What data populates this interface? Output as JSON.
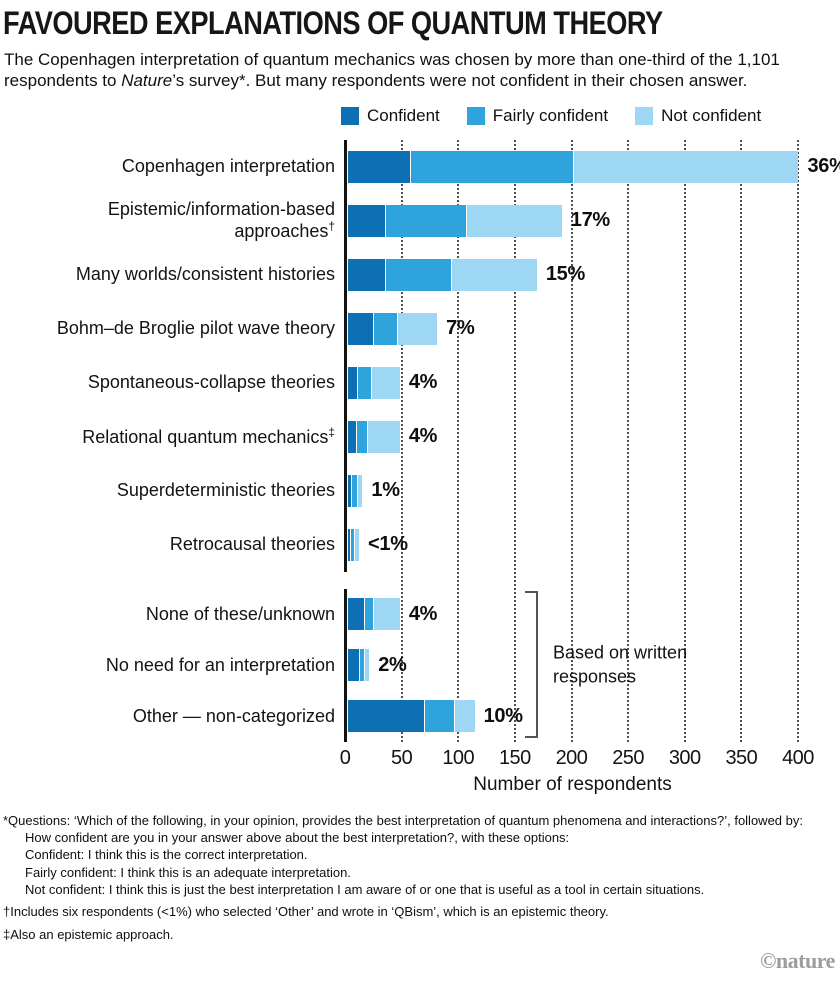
{
  "header": {
    "title": "FAVOURED EXPLANATIONS OF QUANTUM THEORY",
    "subtitle_part1": "The Copenhagen interpretation of quantum mechanics was chosen by more than one-third of the 1,101 respondents to ",
    "subtitle_italic": "Nature",
    "subtitle_part2": "’s survey*. But many respondents were not confident in their chosen answer."
  },
  "chart_data": {
    "type": "bar",
    "orientation": "horizontal",
    "stacked": true,
    "xlabel": "Number of respondents",
    "xlim": [
      0,
      400
    ],
    "xticks": [
      0,
      50,
      100,
      150,
      200,
      250,
      300,
      350,
      400
    ],
    "grid": "dotted-vertical",
    "legend": [
      {
        "label": "Confident",
        "color": "#0d70b5"
      },
      {
        "label": "Fairly confident",
        "color": "#2ea3dc"
      },
      {
        "label": "Not confident",
        "color": "#9dd7f3"
      }
    ],
    "series_order": [
      "Confident",
      "Fairly confident",
      "Not confident"
    ],
    "groups": [
      {
        "name": "main-options",
        "rows": [
          {
            "label_lines": [
              "Copenhagen interpretation"
            ],
            "pct": "36%",
            "values": [
              55,
              143,
              198
            ]
          },
          {
            "label_lines": [
              "Epistemic/information-based",
              "approaches†"
            ],
            "pct": "17%",
            "values": [
              33,
              70,
              84
            ]
          },
          {
            "label_lines": [
              "Many worlds/consistent histories"
            ],
            "pct": "15%",
            "values": [
              33,
              57,
              75
            ]
          },
          {
            "label_lines": [
              "Bohm–de Broglie pilot wave theory"
            ],
            "pct": "7%",
            "values": [
              22,
              20,
              35
            ]
          },
          {
            "label_lines": [
              "Spontaneous-collapse theories"
            ],
            "pct": "4%",
            "values": [
              8,
              11,
              25
            ]
          },
          {
            "label_lines": [
              "Relational quantum mechanics‡"
            ],
            "pct": "4%",
            "values": [
              7,
              9,
              28
            ]
          },
          {
            "label_lines": [
              "Superdeterministic theories"
            ],
            "pct": "1%",
            "values": [
              3,
              4,
              4
            ]
          },
          {
            "label_lines": [
              "Retrocausal theories"
            ],
            "pct": "<1%",
            "values": [
              2,
              2,
              4
            ]
          }
        ]
      },
      {
        "name": "written-responses",
        "annotation": "Based on written responses",
        "rows": [
          {
            "label_lines": [
              "None of these/unknown"
            ],
            "pct": "4%",
            "values": [
              14,
              7,
              23
            ]
          },
          {
            "label_lines": [
              "No need for an interpretation"
            ],
            "pct": "2%",
            "values": [
              10,
              3,
              4
            ]
          },
          {
            "label_lines": [
              "Other — non-categorized"
            ],
            "pct": "10%",
            "values": [
              67,
              26,
              17
            ]
          }
        ]
      }
    ]
  },
  "footnotes": [
    {
      "indent": false,
      "gap": false,
      "text": "*Questions: ‘Which of the following, in your opinion, provides the best interpretation of quantum phenomena and interactions?’, followed by:"
    },
    {
      "indent": true,
      "gap": false,
      "text": "How confident are you in your answer above about the best interpretation?, with these options:"
    },
    {
      "indent": true,
      "gap": false,
      "text": "Confident: I think this is the correct interpretation."
    },
    {
      "indent": true,
      "gap": false,
      "text": "Fairly confident: I think this is an adequate interpretation."
    },
    {
      "indent": true,
      "gap": false,
      "text": "Not confident: I think this is just the best interpretation I am aware of or one that is useful as a tool in certain situations."
    },
    {
      "indent": false,
      "gap": true,
      "text": "†Includes six respondents (<1%) who selected ‘Other’ and wrote in ‘QBism’, which is an epistemic theory."
    },
    {
      "indent": false,
      "gap": true,
      "text": "‡Also an epistemic approach."
    }
  ],
  "credit": "©nature"
}
